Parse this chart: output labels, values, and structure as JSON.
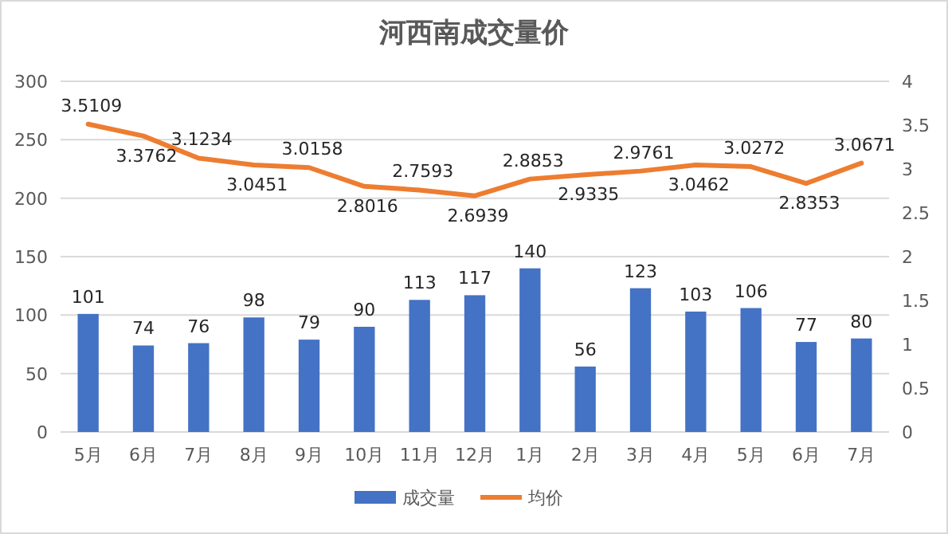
{
  "chart_data": {
    "type": "bar",
    "title": "河西南成交量价",
    "categories": [
      "5月",
      "6月",
      "7月",
      "8月",
      "9月",
      "10月",
      "11月",
      "12月",
      "1月",
      "2月",
      "3月",
      "4月",
      "5月",
      "6月",
      "7月"
    ],
    "series": [
      {
        "name": "成交量",
        "color": "#4472c4",
        "values": [
          101,
          74,
          76,
          98,
          79,
          90,
          113,
          117,
          140,
          56,
          123,
          103,
          106,
          77,
          80
        ]
      },
      {
        "name": "均价",
        "type": "line",
        "axis": "y2",
        "color": "#ed7d31",
        "values": [
          3.5109,
          3.3762,
          3.1234,
          3.0451,
          3.0158,
          2.8016,
          2.7593,
          2.6939,
          2.8853,
          2.9335,
          2.9761,
          3.0462,
          3.0272,
          2.8353,
          3.0671
        ]
      }
    ],
    "ylim": [
      0,
      300
    ],
    "yticks": [
      0,
      50,
      100,
      150,
      200,
      250,
      300
    ],
    "y2lim": [
      0,
      4
    ],
    "y2ticks": [
      0,
      0.5,
      1,
      1.5,
      2,
      2.5,
      3,
      3.5,
      4
    ],
    "grid": "y",
    "legend": "bottom",
    "data_labels": true
  }
}
